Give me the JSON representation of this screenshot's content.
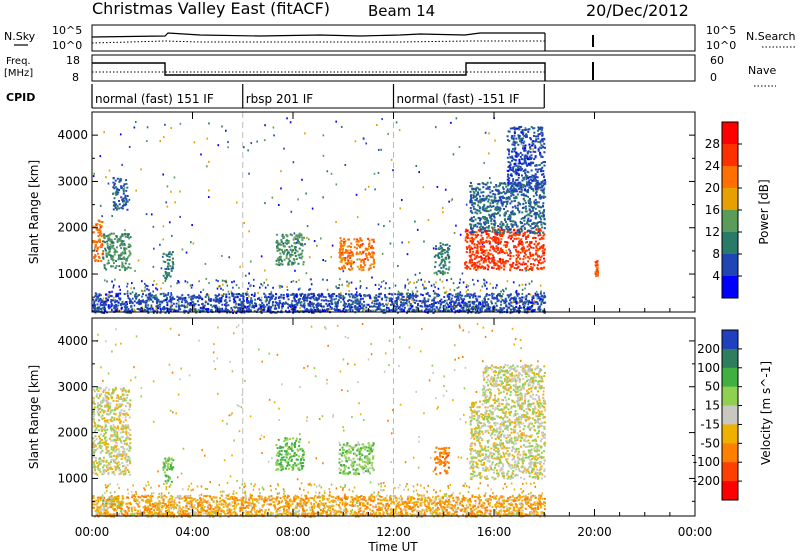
{
  "header": {
    "station": "Christmas Valley East (fitACF)",
    "beam": "Beam 14",
    "date": "20/Dec/2012"
  },
  "strip_labels": {
    "nsky": "N.Sky",
    "nsky_ticks": [
      "10^5",
      "10^0"
    ],
    "nsearch": "N.Search",
    "nsearch_ticks": [
      "10^5",
      "10^0"
    ],
    "freq": "Freq.",
    "freq_unit": "[MHz]",
    "freq_ticks": [
      "18",
      "8"
    ],
    "nave": "Nave",
    "nave_ticks": [
      "60",
      "0"
    ],
    "cpid": "CPID"
  },
  "cpid_segments": [
    {
      "label": "normal (fast) 151 IF",
      "start": 0.0,
      "end": 6.0
    },
    {
      "label": "rbsp 201 IF",
      "start": 6.0,
      "end": 12.0
    },
    {
      "label": "normal (fast) -151 IF",
      "start": 12.0,
      "end": 18.0
    }
  ],
  "x_axis": {
    "label": "Time UT",
    "ticks": [
      "00:00",
      "04:00",
      "08:00",
      "12:00",
      "16:00",
      "20:00",
      "00:00"
    ]
  },
  "power_panel": {
    "ylabel": "Slant Range [km]",
    "yticks": [
      "1000",
      "2000",
      "3000",
      "4000"
    ],
    "cbar_label": "Power [dB]",
    "cbar_ticks": [
      "4",
      "8",
      "12",
      "16",
      "20",
      "24",
      "28"
    ],
    "cbar_colors": [
      "#0000ff",
      "#2046b4",
      "#2a7a6a",
      "#5a9c5a",
      "#e6a000",
      "#ff7000",
      "#ff3000",
      "#ff0000"
    ]
  },
  "velocity_panel": {
    "ylabel": "Slant Range [km]",
    "yticks": [
      "1000",
      "2000",
      "3000",
      "4000"
    ],
    "cbar_label": "Velocity [m s^-1]",
    "cbar_ticks": [
      "200",
      "100",
      "50",
      "15",
      "-15",
      "-50",
      "-100",
      "-200"
    ],
    "cbar_colors": [
      "#2040c0",
      "#2e7d5e",
      "#40b040",
      "#90d050",
      "#c8c8c0",
      "#f0b000",
      "#ff8000",
      "#ff4000",
      "#ff0000"
    ]
  },
  "chart_data": [
    {
      "type": "heatmap",
      "title": "Power",
      "x_units": "hours UT",
      "xlim": [
        0,
        24
      ],
      "y_units": "km",
      "ylim": [
        180,
        4500
      ],
      "cbar_range": [
        0,
        30
      ],
      "regions": [
        {
          "t0": 0.0,
          "t1": 0.4,
          "r0": 1300,
          "r1": 2200,
          "value": 22
        },
        {
          "t0": 0.4,
          "t1": 1.5,
          "r0": 1100,
          "r1": 1900,
          "value": 12
        },
        {
          "t0": 0.8,
          "t1": 1.4,
          "r0": 2400,
          "r1": 3100,
          "value": 8
        },
        {
          "t0": 2.8,
          "t1": 3.2,
          "r0": 900,
          "r1": 1500,
          "value": 10
        },
        {
          "t0": 7.3,
          "t1": 8.4,
          "r0": 1200,
          "r1": 1900,
          "value": 12
        },
        {
          "t0": 9.8,
          "t1": 11.2,
          "r0": 1100,
          "r1": 1800,
          "value": 22
        },
        {
          "t0": 13.6,
          "t1": 14.2,
          "r0": 1000,
          "r1": 1700,
          "value": 10
        },
        {
          "t0": 14.8,
          "t1": 18.0,
          "r0": 1100,
          "r1": 2000,
          "value": 26
        },
        {
          "t0": 15.0,
          "t1": 18.0,
          "r0": 1900,
          "r1": 3000,
          "value": 8
        },
        {
          "t0": 16.5,
          "t1": 18.0,
          "r0": 2800,
          "r1": 4200,
          "value": 6
        },
        {
          "t0": 0.0,
          "t1": 18.0,
          "r0": 180,
          "r1": 600,
          "value": 6
        },
        {
          "t0": 20.0,
          "t1": 20.1,
          "r0": 900,
          "r1": 1300,
          "value": 24
        }
      ]
    },
    {
      "type": "heatmap",
      "title": "Velocity",
      "x_units": "hours UT",
      "xlim": [
        0,
        24
      ],
      "y_units": "km",
      "ylim": [
        180,
        4500
      ],
      "cbar_range": [
        -200,
        200
      ],
      "regions": [
        {
          "t0": 0.0,
          "t1": 1.5,
          "r0": 1100,
          "r1": 3000,
          "value": 0
        },
        {
          "t0": 0.2,
          "t1": 1.2,
          "r0": 400,
          "r1": 600,
          "value": 50
        },
        {
          "t0": 2.8,
          "t1": 3.2,
          "r0": 900,
          "r1": 1500,
          "value": 50
        },
        {
          "t0": 7.3,
          "t1": 8.4,
          "r0": 1200,
          "r1": 1900,
          "value": 60
        },
        {
          "t0": 9.8,
          "t1": 11.2,
          "r0": 1100,
          "r1": 1800,
          "value": 40
        },
        {
          "t0": 13.6,
          "t1": 14.2,
          "r0": 1100,
          "r1": 1700,
          "value": -80
        },
        {
          "t0": 15.0,
          "t1": 18.0,
          "r0": 1000,
          "r1": 2700,
          "value": 0
        },
        {
          "t0": 15.5,
          "t1": 18.0,
          "r0": 2700,
          "r1": 3500,
          "value": 0
        },
        {
          "t0": 0.0,
          "t1": 18.0,
          "r0": 180,
          "r1": 650,
          "value": -40
        }
      ]
    }
  ]
}
